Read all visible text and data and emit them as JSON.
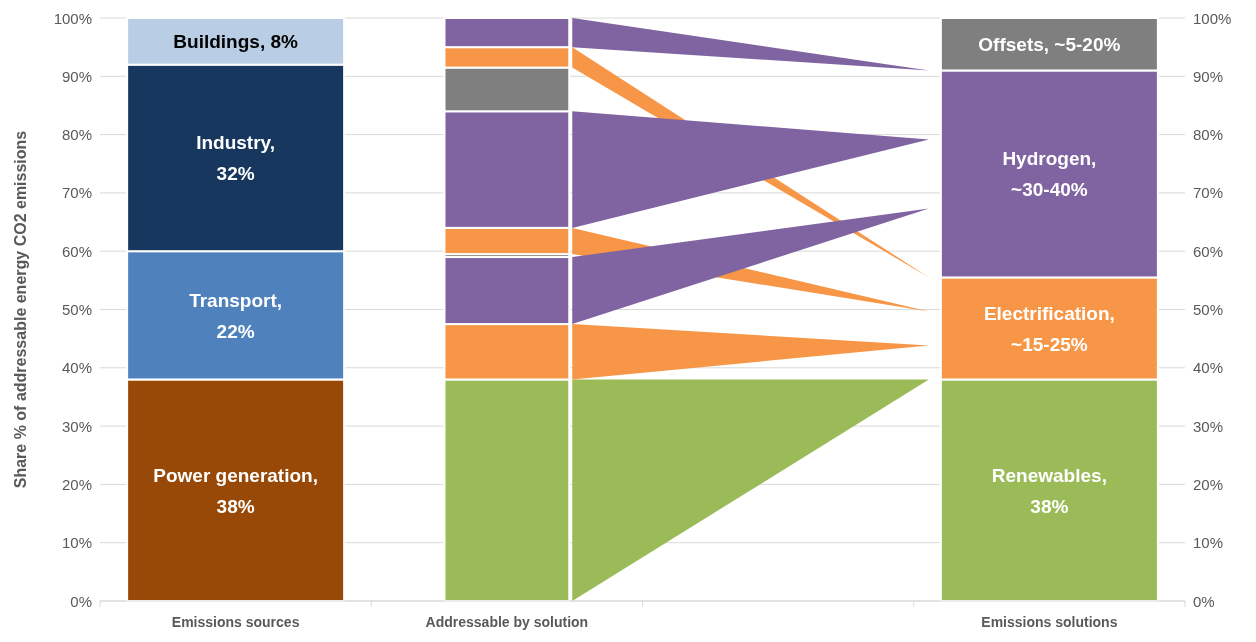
{
  "chart_data": {
    "type": "bar",
    "stacked": true,
    "ylabel": "Share % of addressable energy CO2 emissions",
    "categories": [
      "Emissions sources",
      "Addressable by solution",
      null,
      "Emissions solutions"
    ],
    "series": [
      {
        "color": "#984807",
        "values": [
          38,
          null,
          null,
          null
        ]
      },
      {
        "color": "#4f81bd",
        "values": [
          22,
          null,
          null,
          null
        ]
      },
      {
        "color": "#17375e",
        "values": [
          32,
          null,
          null,
          null
        ]
      },
      {
        "color": "#b9cde5",
        "values": [
          8,
          null,
          null,
          null
        ]
      },
      {
        "color": "#9bbb59",
        "values": [
          null,
          38,
          null,
          null
        ]
      },
      {
        "color": "#f79646",
        "values": [
          null,
          9.5,
          null,
          null
        ]
      },
      {
        "color": "#8064a2",
        "values": [
          null,
          11.5,
          null,
          null
        ]
      },
      {
        "color": "#7f7f7f",
        "values": [
          null,
          0.5,
          null,
          null
        ]
      },
      {
        "color": "#f79646",
        "values": [
          null,
          4.5,
          null,
          null
        ]
      },
      {
        "color": "#8064a2",
        "values": [
          null,
          20,
          null,
          null
        ]
      },
      {
        "color": "#7f7f7f",
        "values": [
          null,
          7.5,
          null,
          null
        ]
      },
      {
        "color": "#f79646",
        "values": [
          null,
          3.5,
          null,
          null
        ]
      },
      {
        "color": "#8064a2",
        "values": [
          null,
          5,
          null,
          null
        ]
      },
      {
        "color": "#9bbb59",
        "values": [
          null,
          null,
          null,
          38
        ]
      },
      {
        "color": "#f79646",
        "values": [
          null,
          null,
          null,
          17.5
        ]
      },
      {
        "color": "#8064a2",
        "values": [
          null,
          null,
          null,
          35.5
        ]
      },
      {
        "color": "#7f7f7f",
        "values": [
          null,
          null,
          null,
          9
        ]
      }
    ],
    "annotations": [
      "Power generation, 38%",
      "Transport, 22%",
      "Industry, 32%",
      "Buildings, 8%",
      "Renewables, 38%",
      "Electrification, ~15-25%",
      "Hydrogen, ~30-40%",
      "Offsets, ~5-20%"
    ],
    "ylim": [
      0,
      100
    ],
    "yticks": [
      {
        "value": 0,
        "label": "0%"
      },
      {
        "value": 10,
        "label": "10%"
      },
      {
        "value": 20,
        "label": "20%"
      },
      {
        "value": 30,
        "label": "30%"
      },
      {
        "value": 40,
        "label": "40%"
      },
      {
        "value": 50,
        "label": "50%"
      },
      {
        "value": 60,
        "label": "60%"
      },
      {
        "value": 70,
        "label": "70%"
      },
      {
        "value": 80,
        "label": "80%"
      },
      {
        "value": 90,
        "label": "90%"
      },
      {
        "value": 100,
        "label": "100%"
      }
    ],
    "y2lim": [
      0,
      100
    ],
    "y2ticks": [
      {
        "value": 0,
        "label": "0%"
      },
      {
        "value": 10,
        "label": "10%"
      },
      {
        "value": 20,
        "label": "20%"
      },
      {
        "value": 30,
        "label": "30%"
      },
      {
        "value": 40,
        "label": "40%"
      },
      {
        "value": 50,
        "label": "50%"
      },
      {
        "value": 60,
        "label": "60%"
      },
      {
        "value": 70,
        "label": "70%"
      },
      {
        "value": 80,
        "label": "80%"
      },
      {
        "value": 90,
        "label": "90%"
      },
      {
        "value": 100,
        "label": "100%"
      }
    ],
    "grid": "y"
  }
}
